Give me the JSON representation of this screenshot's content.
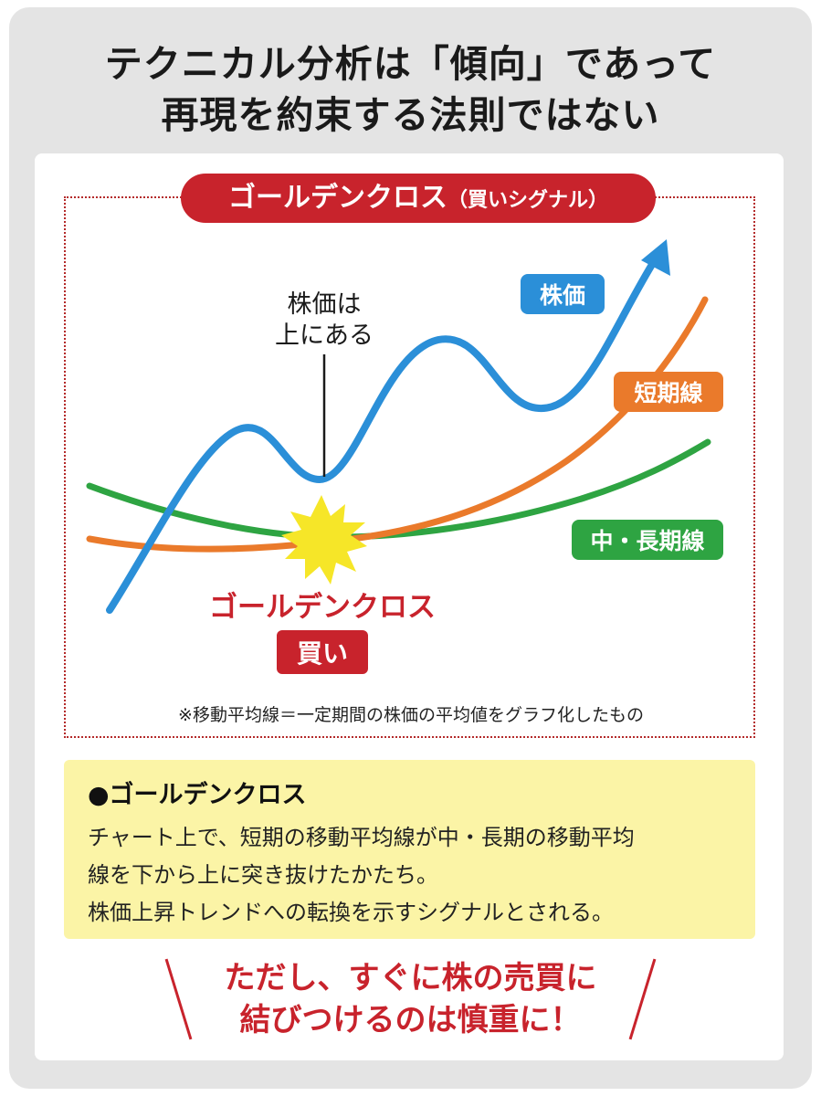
{
  "title": {
    "line1": "テクニカル分析は「傾向」であって",
    "line2": "再現を約束する法則ではない"
  },
  "chart": {
    "heading_main": "ゴールデンクロス",
    "heading_sub": "（買いシグナル）",
    "annotation_line1": "株価は",
    "annotation_line2": "上にある",
    "label_price": "株価",
    "label_short": "短期線",
    "label_long": "中・長期線",
    "cross_label": "ゴールデンクロス",
    "buy_label": "買い",
    "footnote": "※移動平均線＝一定期間の株価の平均値をグラフ化したもの",
    "colors": {
      "price": "#2b8fd8",
      "short": "#ea7a2b",
      "long": "#2ea442",
      "red": "#c8232c",
      "star": "#f6e628"
    }
  },
  "info": {
    "heading": "●ゴールデンクロス",
    "line1": "チャート上で、短期の移動平均線が中・長期の移動平均",
    "line2": "線を下から上に突き抜けたかたち。",
    "line3": "株価上昇トレンドへの転換を示すシグナルとされる。"
  },
  "warning": {
    "line1": "ただし、すぐに株の売買に",
    "line2": "結びつけるのは慎重に！"
  }
}
